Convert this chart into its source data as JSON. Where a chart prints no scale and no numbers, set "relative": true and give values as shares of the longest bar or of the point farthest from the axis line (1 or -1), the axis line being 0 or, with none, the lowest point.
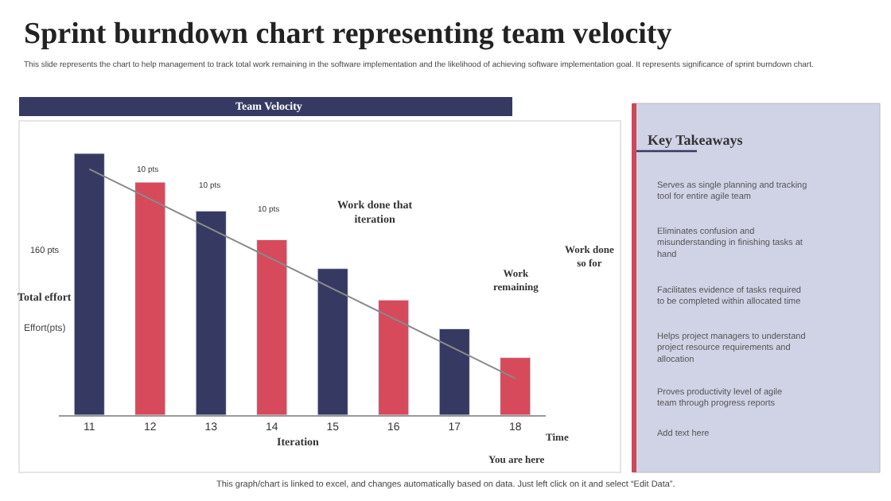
{
  "chart_data": [
    {
      "type": "bar",
      "title": "Sprint burndown chart representing team velocity",
      "subtitle": "This slide represents the chart to help management to track total work remaining in the software implementation and the likelihood of achieving software implementation goal. It represents significance of sprint burndown chart.",
      "xlabel": "Iteration",
      "ylabel": "Effort(pts)",
      "categories": [
        "11",
        "12",
        "13",
        "14",
        "15",
        "16",
        "17",
        "18"
      ],
      "relative": true,
      "series": [
        {
          "values": [
            1,
            0.89,
            0.78,
            0.67,
            0.56,
            0.44,
            0.33,
            0.22
          ],
          "colors": [
            "#363a62",
            "#d64a5b",
            "#363a62",
            "#d64a5b",
            "#363a62",
            "#d64a5b",
            "#363a62",
            "#d64a5b"
          ]
        },
        {
          "type": "line",
          "x": [
            "11",
            "18"
          ],
          "values": [
            0.94,
            0.14
          ],
          "color": "#8a8a8a"
        }
      ],
      "annotations": [
        "Team Velocity",
        "10 pts",
        "10 pts",
        "10 pts",
        "160 pts",
        "Total effort",
        "Work done that iteration",
        "Work remaining",
        "Work done so for",
        "Time",
        "You are here",
        "This graph/chart is linked to excel, and changes automatically based on data. Just left click on it and select “Edit Data”."
      ],
      "legend": false
    },
    {
      "type": "other",
      "title": "Key Takeaways",
      "annotations": [
        "Serves as single planning and tracking tool for entire agile team",
        "Eliminates confusion and misunderstanding in finishing tasks at hand",
        "Facilitates evidence of tasks required to be completed within allocated time",
        "Helps project managers to understand project resource requirements and allocation",
        "Proves productivity level of agile team through progress reports",
        "Add text here"
      ]
    }
  ]
}
